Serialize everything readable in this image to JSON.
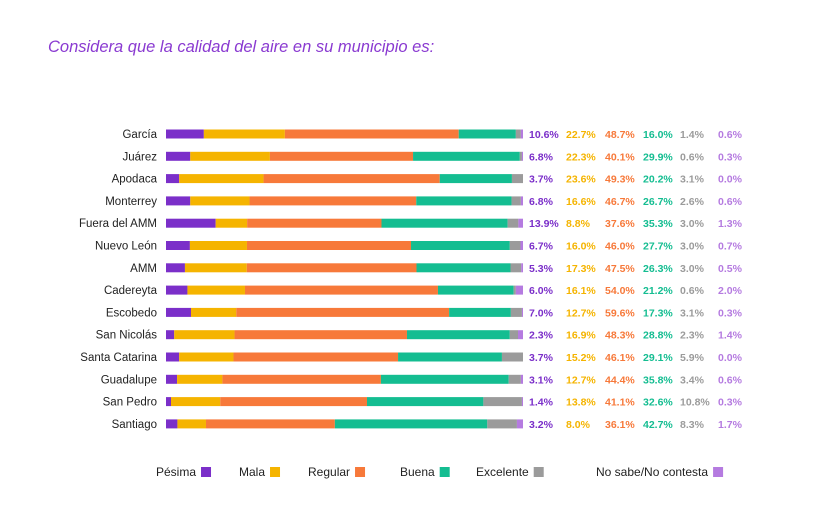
{
  "title": "Considera que la calidad del aire en su municipio es:",
  "chart_data": {
    "type": "bar",
    "orientation": "horizontal",
    "stacked": true,
    "title": "Considera que la calidad del aire en su municipio es:",
    "unit": "%",
    "xlim": [
      0,
      100
    ],
    "grid": false,
    "legend_position": "bottom",
    "categories": [
      "García",
      "Juárez",
      "Apodaca",
      "Monterrey",
      "Fuera del AMM",
      "Nuevo León",
      "AMM",
      "Cadereyta",
      "Escobedo",
      "San Nicolás",
      "Santa Catarina",
      "Guadalupe",
      "San Pedro",
      "Santiago"
    ],
    "series": [
      {
        "name": "Pésima",
        "color": "#7b2fc9",
        "values": [
          10.6,
          6.8,
          3.7,
          6.8,
          13.9,
          6.7,
          5.3,
          6.0,
          7.0,
          2.3,
          3.7,
          3.1,
          1.4,
          3.2
        ]
      },
      {
        "name": "Mala",
        "color": "#f5b400",
        "values": [
          22.7,
          22.3,
          23.6,
          16.6,
          8.8,
          16.0,
          17.3,
          16.1,
          12.7,
          16.9,
          15.2,
          12.7,
          13.8,
          8.0
        ]
      },
      {
        "name": "Regular",
        "color": "#f7793a",
        "values": [
          48.7,
          40.1,
          49.3,
          46.7,
          37.6,
          46.0,
          47.5,
          54.0,
          59.6,
          48.3,
          46.1,
          44.4,
          41.1,
          36.1
        ]
      },
      {
        "name": "Buena",
        "color": "#14bd91",
        "values": [
          16.0,
          29.9,
          20.2,
          26.7,
          35.3,
          27.7,
          26.3,
          21.2,
          17.3,
          28.8,
          29.1,
          35.8,
          32.6,
          42.7
        ]
      },
      {
        "name": "Excelente",
        "color": "#9b9b9b",
        "values": [
          1.4,
          0.6,
          3.1,
          2.6,
          3.0,
          3.0,
          3.0,
          0.6,
          3.1,
          2.3,
          5.9,
          3.4,
          10.8,
          8.3
        ]
      },
      {
        "name": "No sabe/No contesta",
        "color": "#b57be0",
        "values": [
          0.6,
          0.3,
          0.0,
          0.6,
          1.3,
          0.7,
          0.5,
          2.0,
          0.3,
          1.4,
          0.0,
          0.6,
          0.3,
          1.7
        ]
      }
    ]
  }
}
